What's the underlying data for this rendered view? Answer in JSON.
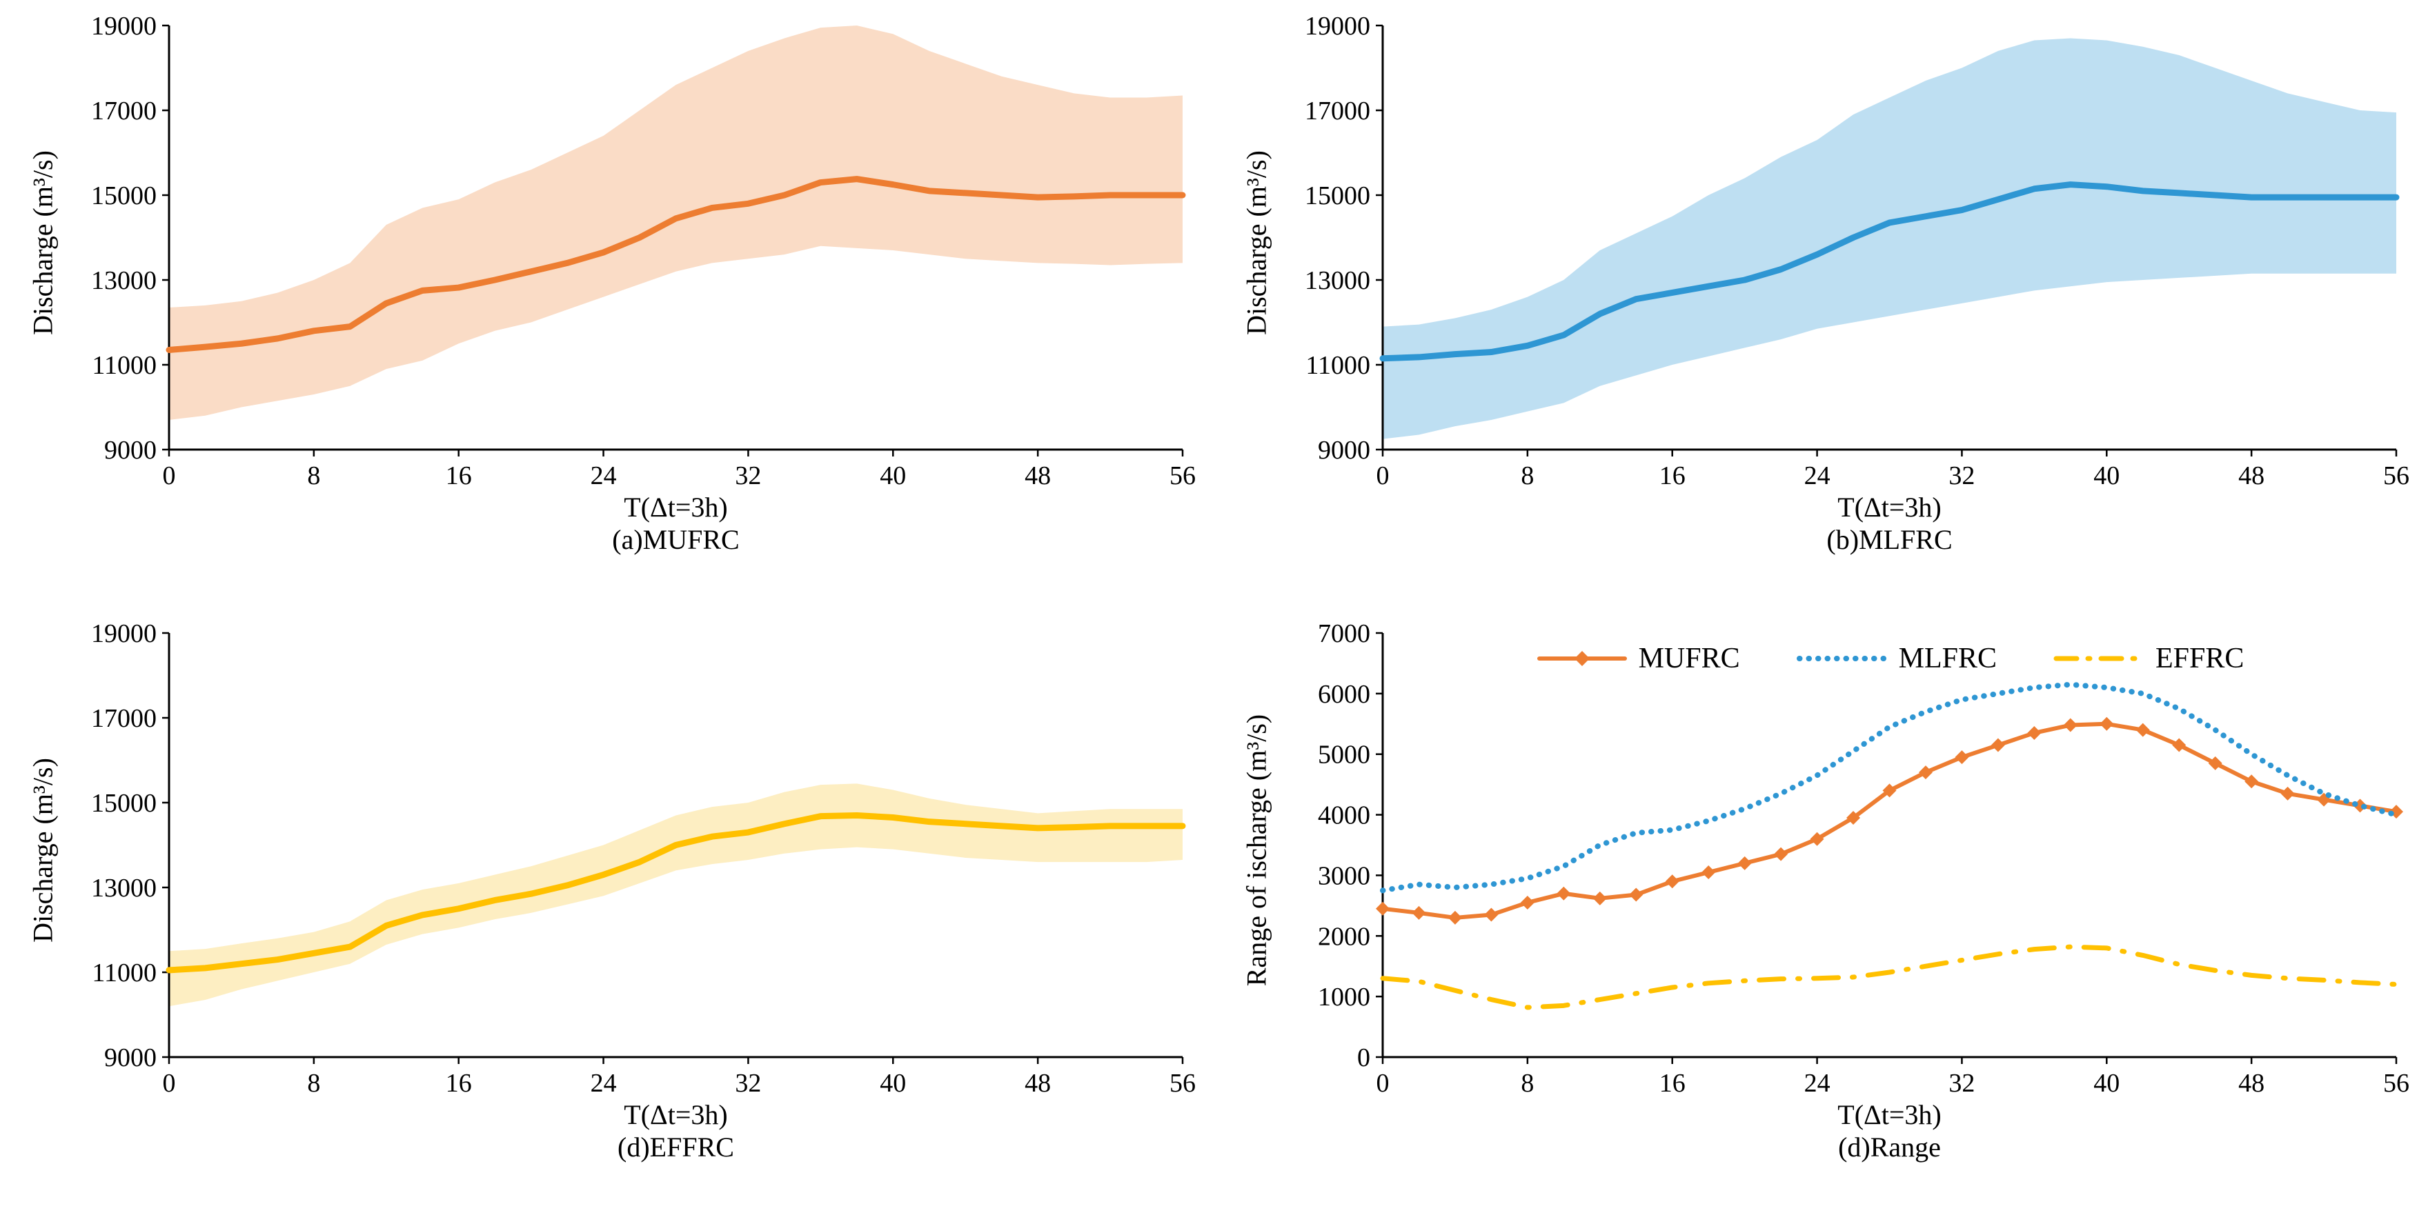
{
  "figure": {
    "background": "#ffffff",
    "axis_color": "#000000"
  },
  "chart_data": [
    {
      "id": "a-mufrc",
      "type": "line",
      "title": "(a)MUFRC",
      "xlabel": "T(Δt=3h)",
      "ylabel": "Discharge (m³/s)",
      "xlim": [
        0,
        56
      ],
      "ylim": [
        9000,
        19000
      ],
      "xticks": [
        0,
        8,
        16,
        24,
        32,
        40,
        48,
        56
      ],
      "yticks": [
        9000,
        11000,
        13000,
        15000,
        17000,
        19000
      ],
      "x": [
        0,
        2,
        4,
        6,
        8,
        10,
        12,
        14,
        16,
        18,
        20,
        22,
        24,
        26,
        28,
        30,
        32,
        34,
        36,
        38,
        40,
        42,
        44,
        46,
        48,
        50,
        52,
        54,
        56
      ],
      "band": {
        "color": "#FADCC6",
        "upper": [
          12350,
          12400,
          12500,
          12700,
          13000,
          13400,
          14300,
          14700,
          14900,
          15300,
          15600,
          16000,
          16400,
          17000,
          17600,
          18000,
          18400,
          18700,
          18950,
          19000,
          18800,
          18400,
          18100,
          17800,
          17600,
          17400,
          17300,
          17300,
          17350
        ],
        "lower": [
          9700,
          9800,
          10000,
          10150,
          10300,
          10500,
          10900,
          11100,
          11500,
          11800,
          12000,
          12300,
          12600,
          12900,
          13200,
          13400,
          13500,
          13600,
          13800,
          13750,
          13700,
          13600,
          13500,
          13450,
          13400,
          13380,
          13350,
          13380,
          13400
        ]
      },
      "series": [
        {
          "name": "MUFRC",
          "color": "#ED7D31",
          "style": "solid",
          "width": 9,
          "values": [
            11350,
            11420,
            11500,
            11620,
            11800,
            11900,
            12450,
            12750,
            12820,
            13000,
            13200,
            13400,
            13650,
            14000,
            14450,
            14700,
            14800,
            15000,
            15300,
            15380,
            15250,
            15100,
            15050,
            15000,
            14950,
            14970,
            15000,
            15000,
            15000
          ]
        }
      ]
    },
    {
      "id": "b-mlfrc",
      "type": "line",
      "title": "(b)MLFRC",
      "xlabel": "T(Δt=3h)",
      "ylabel": "Discharge (m³/s)",
      "xlim": [
        0,
        56
      ],
      "ylim": [
        9000,
        19000
      ],
      "xticks": [
        0,
        8,
        16,
        24,
        32,
        40,
        48,
        56
      ],
      "yticks": [
        9000,
        11000,
        13000,
        15000,
        17000,
        19000
      ],
      "x": [
        0,
        2,
        4,
        6,
        8,
        10,
        12,
        14,
        16,
        18,
        20,
        22,
        24,
        26,
        28,
        30,
        32,
        34,
        36,
        38,
        40,
        42,
        44,
        46,
        48,
        50,
        52,
        54,
        56
      ],
      "band": {
        "color": "#BEDFF2",
        "upper": [
          11900,
          11950,
          12100,
          12300,
          12600,
          13000,
          13700,
          14100,
          14500,
          15000,
          15400,
          15900,
          16300,
          16900,
          17300,
          17700,
          18000,
          18400,
          18650,
          18700,
          18650,
          18500,
          18300,
          18000,
          17700,
          17400,
          17200,
          17000,
          16950
        ],
        "lower": [
          9250,
          9350,
          9550,
          9700,
          9900,
          10100,
          10500,
          10750,
          11000,
          11200,
          11400,
          11600,
          11850,
          12000,
          12150,
          12300,
          12450,
          12600,
          12750,
          12850,
          12950,
          13000,
          13050,
          13100,
          13150,
          13150,
          13150,
          13150,
          13150
        ]
      },
      "series": [
        {
          "name": "MLFRC",
          "color": "#2E96D3",
          "style": "solid",
          "width": 9,
          "values": [
            11150,
            11180,
            11250,
            11300,
            11450,
            11700,
            12200,
            12550,
            12700,
            12850,
            13000,
            13250,
            13600,
            14000,
            14350,
            14500,
            14650,
            14900,
            15150,
            15250,
            15200,
            15100,
            15050,
            15000,
            14950,
            14950,
            14950,
            14950,
            14950
          ]
        }
      ]
    },
    {
      "id": "c-effrc",
      "type": "line",
      "title": "(d)EFFRC",
      "xlabel": "T(Δt=3h)",
      "ylabel": "Discharge (m³/s)",
      "xlim": [
        0,
        56
      ],
      "ylim": [
        9000,
        19000
      ],
      "xticks": [
        0,
        8,
        16,
        24,
        32,
        40,
        48,
        56
      ],
      "yticks": [
        9000,
        11000,
        13000,
        15000,
        17000,
        19000
      ],
      "x": [
        0,
        2,
        4,
        6,
        8,
        10,
        12,
        14,
        16,
        18,
        20,
        22,
        24,
        26,
        28,
        30,
        32,
        34,
        36,
        38,
        40,
        42,
        44,
        46,
        48,
        50,
        52,
        54,
        56
      ],
      "band": {
        "color": "#FDEEC2",
        "upper": [
          11500,
          11550,
          11680,
          11800,
          11950,
          12200,
          12700,
          12950,
          13100,
          13300,
          13500,
          13750,
          14000,
          14350,
          14700,
          14900,
          15000,
          15250,
          15420,
          15450,
          15300,
          15100,
          14950,
          14850,
          14750,
          14800,
          14850,
          14850,
          14850
        ],
        "lower": [
          10200,
          10350,
          10600,
          10800,
          11000,
          11200,
          11650,
          11900,
          12050,
          12250,
          12400,
          12600,
          12800,
          13100,
          13400,
          13550,
          13650,
          13800,
          13900,
          13950,
          13900,
          13800,
          13700,
          13650,
          13600,
          13600,
          13600,
          13600,
          13650
        ]
      },
      "series": [
        {
          "name": "EFFRC",
          "color": "#FFC000",
          "style": "solid",
          "width": 9,
          "values": [
            11050,
            11100,
            11200,
            11300,
            11450,
            11600,
            12100,
            12350,
            12500,
            12700,
            12850,
            13050,
            13300,
            13600,
            14000,
            14200,
            14300,
            14500,
            14680,
            14700,
            14650,
            14550,
            14500,
            14450,
            14400,
            14420,
            14450,
            14450,
            14450
          ]
        }
      ]
    },
    {
      "id": "d-range",
      "type": "line",
      "title": "(d)Range",
      "xlabel": "T(Δt=3h)",
      "ylabel": "Range of ischarge (m³/s)",
      "xlim": [
        0,
        56
      ],
      "ylim": [
        0,
        7000
      ],
      "xticks": [
        0,
        8,
        16,
        24,
        32,
        40,
        48,
        56
      ],
      "yticks": [
        0,
        1000,
        2000,
        3000,
        4000,
        5000,
        6000,
        7000
      ],
      "x": [
        0,
        2,
        4,
        6,
        8,
        10,
        12,
        14,
        16,
        18,
        20,
        22,
        24,
        26,
        28,
        30,
        32,
        34,
        36,
        38,
        40,
        42,
        44,
        46,
        48,
        50,
        52,
        54,
        56
      ],
      "legend_position": "top-center",
      "series": [
        {
          "name": "MUFRC",
          "color": "#ED7D31",
          "style": "solid",
          "width": 6,
          "marker": "diamond",
          "marker_size": 10,
          "values": [
            2450,
            2380,
            2300,
            2350,
            2550,
            2700,
            2620,
            2680,
            2900,
            3050,
            3200,
            3350,
            3600,
            3950,
            4400,
            4700,
            4950,
            5150,
            5350,
            5480,
            5500,
            5400,
            5150,
            4850,
            4550,
            4350,
            4250,
            4150,
            4050
          ]
        },
        {
          "name": "MLFRC",
          "color": "#2E96D3",
          "style": "dotted",
          "width": 8,
          "values": [
            2750,
            2850,
            2800,
            2850,
            2950,
            3150,
            3500,
            3700,
            3750,
            3900,
            4100,
            4350,
            4650,
            5050,
            5450,
            5700,
            5900,
            6000,
            6100,
            6150,
            6100,
            6000,
            5750,
            5400,
            5000,
            4650,
            4350,
            4150,
            4000
          ]
        },
        {
          "name": "EFFRC",
          "color": "#FFC000",
          "style": "dashdot",
          "width": 7,
          "values": [
            1300,
            1250,
            1100,
            950,
            820,
            850,
            950,
            1050,
            1150,
            1220,
            1260,
            1290,
            1300,
            1320,
            1400,
            1500,
            1600,
            1700,
            1780,
            1820,
            1800,
            1680,
            1530,
            1430,
            1350,
            1300,
            1270,
            1230,
            1200
          ]
        }
      ]
    }
  ]
}
